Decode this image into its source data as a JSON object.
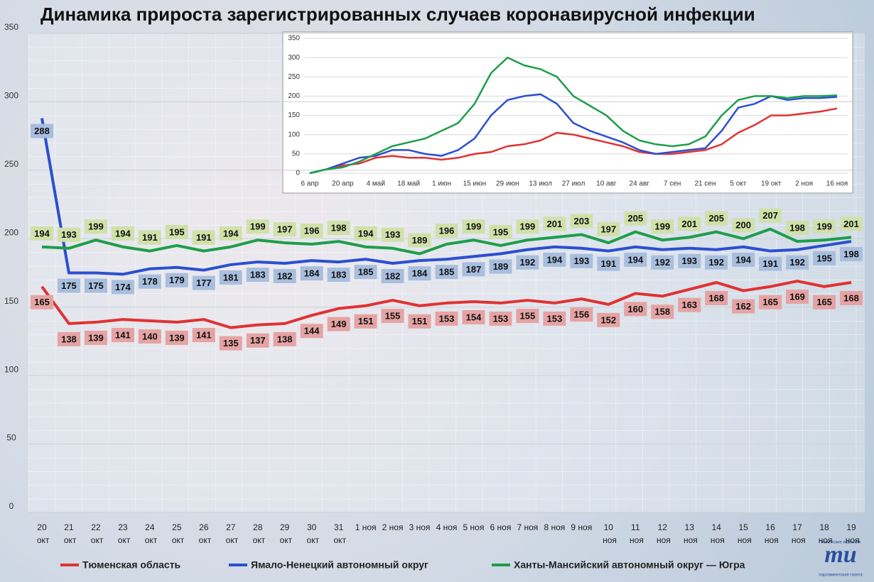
{
  "chart_data": [
    {
      "type": "line",
      "title": "Динамика прироста зарегистрированных случаев коронавирусной инфекции",
      "categories": [
        "20 окт",
        "21 окт",
        "22 окт",
        "23 окт",
        "24 окт",
        "25 окт",
        "26 окт",
        "27 окт",
        "28 окт",
        "29 окт",
        "30 окт",
        "31 окт",
        "1 ноя",
        "2 ноя",
        "3 ноя",
        "4 ноя",
        "5 ноя",
        "6 ноя",
        "7 ноя",
        "8 ноя",
        "9 ноя",
        "10 ноя",
        "11 ноя",
        "12 ноя",
        "13 ноя",
        "14 ноя",
        "15 ноя",
        "16 ноя",
        "17 ноя",
        "18 ноя",
        "19 ноя"
      ],
      "ylim": [
        0,
        350
      ],
      "yticks": [
        0,
        50,
        100,
        150,
        200,
        250,
        300,
        350
      ],
      "grid": true,
      "series": [
        {
          "name": "Тюменская область",
          "color": "#e03232",
          "label_color": "#e6a3a3",
          "values": [
            165,
            138,
            139,
            141,
            140,
            139,
            141,
            135,
            137,
            138,
            144,
            149,
            151,
            155,
            151,
            153,
            154,
            153,
            155,
            153,
            156,
            152,
            160,
            158,
            163,
            168,
            162,
            165,
            169,
            165,
            168
          ]
        },
        {
          "name": "Ямало-Ненецкий автономный округ",
          "color": "#2b4fd0",
          "label_color": "#a8bede",
          "values": [
            288,
            175,
            175,
            174,
            178,
            179,
            177,
            181,
            183,
            182,
            184,
            183,
            185,
            182,
            184,
            185,
            187,
            189,
            192,
            194,
            193,
            191,
            194,
            192,
            193,
            192,
            194,
            191,
            192,
            195,
            198
          ]
        },
        {
          "name": "Ханты-Мансийский автономный округ — Югра",
          "color": "#1e9e4a",
          "label_color": "#cfe1a9",
          "values": [
            194,
            193,
            199,
            194,
            191,
            195,
            191,
            194,
            199,
            197,
            196,
            198,
            194,
            193,
            189,
            196,
            199,
            195,
            199,
            201,
            203,
            197,
            205,
            199,
            201,
            205,
            200,
            207,
            198,
            199,
            201
          ]
        }
      ]
    },
    {
      "type": "line",
      "categories": [
        "6 апр",
        null,
        "20 апр",
        null,
        "4 май",
        null,
        "18 май",
        null,
        "1 июн",
        null,
        "15 июн",
        null,
        "29 июн",
        null,
        "13 июл",
        null,
        "27 июл",
        null,
        "10 авг",
        null,
        "24 авг",
        null,
        "7 сен",
        null,
        "21 сен",
        null,
        "5 окт",
        null,
        "19 окт",
        null,
        "2 ноя",
        null,
        "16 ноя"
      ],
      "ylim": [
        0,
        350
      ],
      "yticks": [
        0,
        50,
        100,
        150,
        200,
        250,
        300,
        350
      ],
      "grid": true,
      "series": [
        {
          "name": "Тюменская область",
          "color": "#e03232",
          "values": [
            0,
            10,
            20,
            25,
            40,
            45,
            40,
            40,
            35,
            40,
            50,
            55,
            70,
            75,
            85,
            105,
            100,
            90,
            80,
            70,
            55,
            50,
            50,
            55,
            60,
            75,
            105,
            125,
            150,
            150,
            155,
            160,
            168
          ]
        },
        {
          "name": "Ямало-Ненецкий автономный округ",
          "color": "#2b4fd0",
          "values": [
            0,
            10,
            25,
            40,
            45,
            60,
            60,
            50,
            45,
            60,
            90,
            150,
            190,
            200,
            205,
            180,
            130,
            110,
            95,
            80,
            60,
            50,
            55,
            60,
            65,
            110,
            170,
            180,
            200,
            190,
            195,
            195,
            198
          ]
        },
        {
          "name": "Ханты-Мансийский автономный округ — Югра",
          "color": "#1e9e4a",
          "values": [
            0,
            10,
            15,
            30,
            50,
            70,
            80,
            90,
            110,
            130,
            180,
            260,
            300,
            280,
            270,
            250,
            200,
            175,
            150,
            110,
            85,
            75,
            70,
            75,
            95,
            150,
            190,
            200,
            200,
            195,
            200,
            200,
            202
          ]
        }
      ]
    }
  ],
  "logo": {
    "mark": "mu",
    "top": "тюменские известия",
    "bottom": "парламентская газета"
  }
}
